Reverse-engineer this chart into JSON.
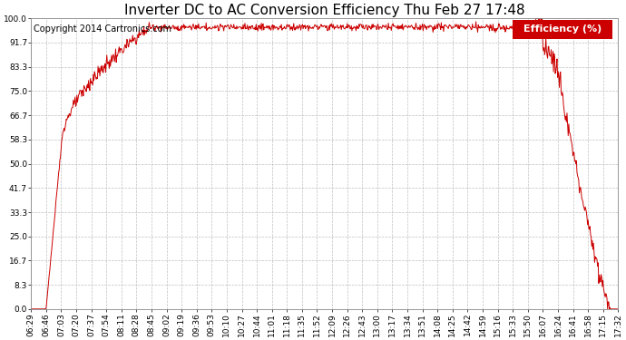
{
  "title": "Inverter DC to AC Conversion Efficiency Thu Feb 27 17:48",
  "copyright": "Copyright 2014 Cartronics.com",
  "legend_label": "Efficiency (%)",
  "legend_bg": "#cc0000",
  "legend_text_color": "#ffffff",
  "line_color": "#cc0000",
  "bg_color": "#ffffff",
  "plot_bg_color": "#ffffff",
  "grid_color": "#b0b0b0",
  "ylim": [
    0.0,
    100.0
  ],
  "yticks": [
    0.0,
    8.3,
    16.7,
    25.0,
    33.3,
    41.7,
    50.0,
    58.3,
    66.7,
    75.0,
    83.3,
    91.7,
    100.0
  ],
  "xtick_labels": [
    "06:29",
    "06:46",
    "07:03",
    "07:20",
    "07:37",
    "07:54",
    "08:11",
    "08:28",
    "08:45",
    "09:02",
    "09:19",
    "09:36",
    "09:53",
    "10:10",
    "10:27",
    "10:44",
    "11:01",
    "11:18",
    "11:35",
    "11:52",
    "12:09",
    "12:26",
    "12:43",
    "13:00",
    "13:17",
    "13:34",
    "13:51",
    "14:08",
    "14:25",
    "14:42",
    "14:59",
    "15:16",
    "15:33",
    "15:50",
    "16:07",
    "16:24",
    "16:41",
    "16:58",
    "17:15",
    "17:32"
  ],
  "title_fontsize": 11,
  "copyright_fontsize": 7,
  "tick_fontsize": 6.5,
  "legend_fontsize": 8
}
